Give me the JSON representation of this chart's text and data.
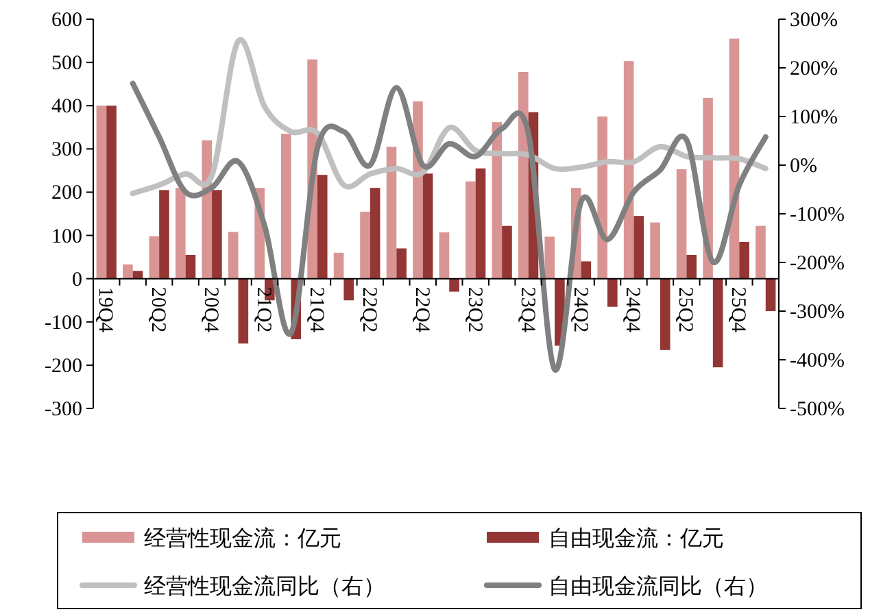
{
  "chart_data": {
    "type": "bar",
    "categories": [
      "19Q4",
      null,
      "20Q2",
      null,
      "20Q4",
      null,
      "21Q2",
      null,
      "21Q4",
      null,
      "22Q2",
      null,
      "22Q4",
      null,
      "23Q2",
      null,
      "23Q4",
      null,
      "24Q2",
      null,
      "24Q4",
      null,
      "25Q2",
      null,
      "25Q4",
      null
    ],
    "series": [
      {
        "name": "经营性现金流：亿元",
        "color": "#d99594",
        "values": [
          400,
          33,
          98,
          210,
          320,
          108,
          210,
          335,
          507,
          60,
          155,
          305,
          410,
          107,
          225,
          362,
          478,
          97,
          210,
          375,
          503,
          130,
          253,
          418,
          555,
          122
        ]
      },
      {
        "name": "自由现金流：亿元",
        "color": "#943634",
        "values": [
          400,
          18,
          205,
          55,
          205,
          -150,
          -50,
          -140,
          240,
          -50,
          210,
          70,
          243,
          -30,
          255,
          122,
          385,
          -155,
          40,
          -65,
          145,
          -165,
          55,
          -205,
          85,
          -75
        ]
      },
      {
        "name": "经营性现金流同比（右）",
        "type": "line",
        "axis": "y2",
        "color": "#c0c0c0",
        "values": [
          null,
          -58,
          -41,
          -18,
          -21,
          255,
          120,
          69,
          66,
          -41,
          -18,
          -7,
          -15,
          77,
          30,
          24,
          21,
          -7,
          -4,
          7,
          7,
          38,
          18,
          15,
          13,
          -7
        ]
      },
      {
        "name": "自由现金流同比（右）",
        "type": "line",
        "axis": "y2",
        "color": "#808080",
        "values": [
          null,
          168,
          58,
          -55,
          -46,
          7,
          -125,
          -345,
          35,
          69,
          0,
          159,
          0,
          44,
          18,
          75,
          66,
          -420,
          -75,
          -153,
          -55,
          -10,
          52,
          -199,
          -41,
          58
        ]
      }
    ],
    "ylim": [
      -300,
      600
    ],
    "yticks": [
      -300,
      -200,
      -100,
      0,
      100,
      200,
      300,
      400,
      500,
      600
    ],
    "y2lim": [
      -500,
      300
    ],
    "y2ticks": [
      {
        "value": -500,
        "label": "-500%"
      },
      {
        "value": -400,
        "label": "-400%"
      },
      {
        "value": -300,
        "label": "-300%"
      },
      {
        "value": -200,
        "label": "-200%"
      },
      {
        "value": -100,
        "label": "-100%"
      },
      {
        "value": 0,
        "label": "0%"
      },
      {
        "value": 100,
        "label": "100%"
      },
      {
        "value": 200,
        "label": "200%"
      },
      {
        "value": 300,
        "label": "300%"
      }
    ],
    "legend": "bottom",
    "grid": false
  }
}
